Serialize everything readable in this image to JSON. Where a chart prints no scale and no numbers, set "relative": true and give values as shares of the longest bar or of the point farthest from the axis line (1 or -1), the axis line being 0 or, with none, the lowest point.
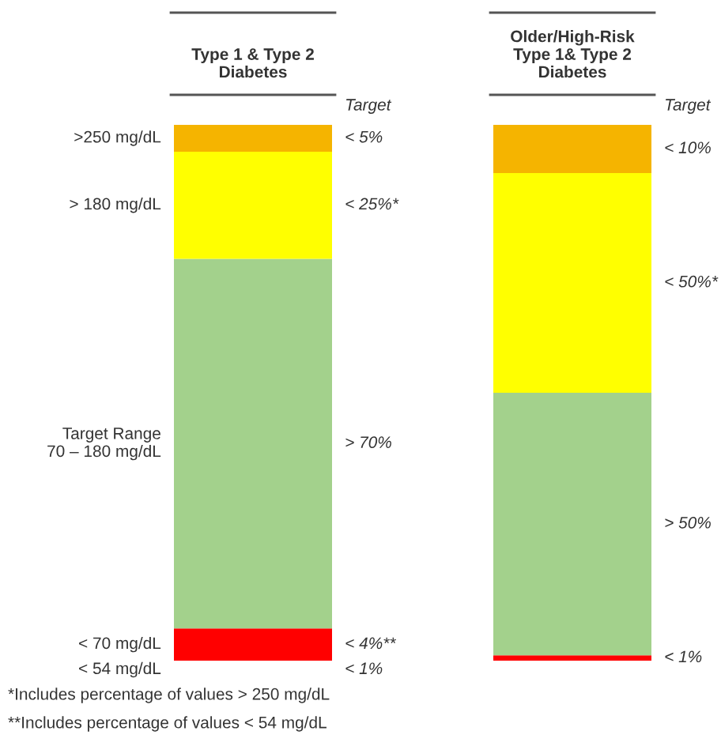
{
  "chart_data": {
    "type": "bar",
    "stacked": true,
    "relative": true,
    "categories": [
      "Type 1 & Type 2\nDiabetes",
      "Older/High-Risk\nType 1& Type 2\nDiabetes"
    ],
    "series": [
      {
        "color": "#ff0000",
        "values": [
          0.06,
          0.01
        ]
      },
      {
        "color": "#a3d18c",
        "values": [
          0.69,
          0.49
        ]
      },
      {
        "color": "#ffff00",
        "values": [
          0.2,
          0.41
        ]
      },
      {
        "color": "#f5b400",
        "values": [
          0.05,
          0.09
        ]
      }
    ],
    "annotations": [
      ">250 mg/dL",
      "> 180 mg/dL",
      "Target Range\n70 – 180 mg/dL",
      "< 70 mg/dL",
      "< 54 mg/dL",
      "Target",
      "< 5%",
      "< 25%*",
      "> 70%",
      "< 4%**",
      "< 1%",
      "Target",
      "< 10%",
      "< 50%*",
      "> 50%",
      "< 1%",
      "*Includes percentage of values > 250 mg/dL",
      "**Includes percentage of values < 54 mg/dL"
    ]
  }
}
